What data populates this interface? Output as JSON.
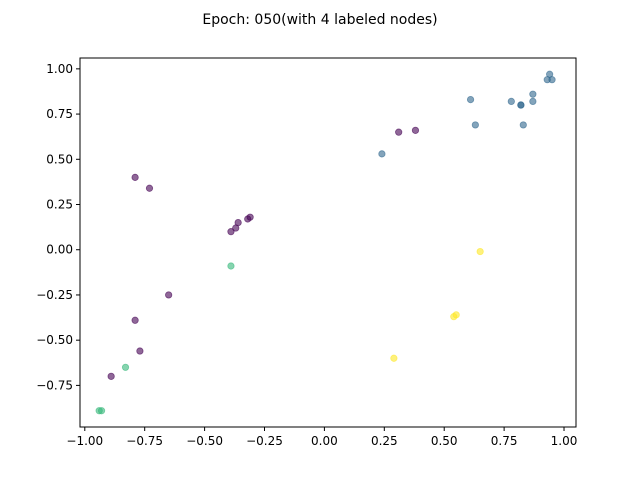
{
  "chart_data": {
    "type": "scatter",
    "title": "Epoch: 050(with 4 labeled nodes)",
    "xlabel": "",
    "ylabel": "",
    "xlim": [
      -1.02,
      1.05
    ],
    "ylim": [
      -0.98,
      1.06
    ],
    "grid": false,
    "xticks": [
      -1.0,
      -0.75,
      -0.5,
      -0.25,
      0.0,
      0.25,
      0.5,
      0.75,
      1.0
    ],
    "xtick_labels": [
      "−1.00",
      "−0.75",
      "−0.50",
      "−0.25",
      "0.00",
      "0.25",
      "0.50",
      "0.75",
      "1.00"
    ],
    "yticks": [
      -0.75,
      -0.5,
      -0.25,
      0.0,
      0.25,
      0.5,
      0.75,
      1.0
    ],
    "ytick_labels": [
      "−0.75",
      "−0.50",
      "−0.25",
      "0.00",
      "0.25",
      "0.50",
      "0.75",
      "1.00"
    ],
    "point_opacity": 0.6,
    "series": [
      {
        "color": "#440154",
        "points": [
          {
            "x": 0.31,
            "y": 0.65
          },
          {
            "x": 0.38,
            "y": 0.66
          },
          {
            "x": -0.79,
            "y": 0.4
          },
          {
            "x": -0.73,
            "y": 0.34
          },
          {
            "x": -0.31,
            "y": 0.18
          },
          {
            "x": -0.32,
            "y": 0.17
          },
          {
            "x": -0.36,
            "y": 0.15
          },
          {
            "x": -0.37,
            "y": 0.12
          },
          {
            "x": -0.39,
            "y": 0.1
          },
          {
            "x": -0.65,
            "y": -0.25
          },
          {
            "x": -0.79,
            "y": -0.39
          },
          {
            "x": -0.77,
            "y": -0.56
          },
          {
            "x": -0.89,
            "y": -0.7
          }
        ]
      },
      {
        "color": "#31688e",
        "points": [
          {
            "x": 0.24,
            "y": 0.53
          },
          {
            "x": 0.61,
            "y": 0.83
          },
          {
            "x": 0.63,
            "y": 0.69
          },
          {
            "x": 0.78,
            "y": 0.82
          },
          {
            "x": 0.82,
            "y": 0.8
          },
          {
            "x": 0.82,
            "y": 0.8
          },
          {
            "x": 0.83,
            "y": 0.69
          },
          {
            "x": 0.87,
            "y": 0.86
          },
          {
            "x": 0.87,
            "y": 0.82
          },
          {
            "x": 0.93,
            "y": 0.94
          },
          {
            "x": 0.94,
            "y": 0.97
          },
          {
            "x": 0.95,
            "y": 0.94
          }
        ]
      },
      {
        "color": "#35b779",
        "points": [
          {
            "x": -0.39,
            "y": -0.09
          },
          {
            "x": -0.83,
            "y": -0.65
          },
          {
            "x": -0.93,
            "y": -0.89
          },
          {
            "x": -0.94,
            "y": -0.89
          }
        ]
      },
      {
        "color": "#fde725",
        "points": [
          {
            "x": 0.65,
            "y": -0.01
          },
          {
            "x": 0.54,
            "y": -0.37
          },
          {
            "x": 0.55,
            "y": -0.36
          },
          {
            "x": 0.29,
            "y": -0.6
          }
        ]
      }
    ]
  }
}
